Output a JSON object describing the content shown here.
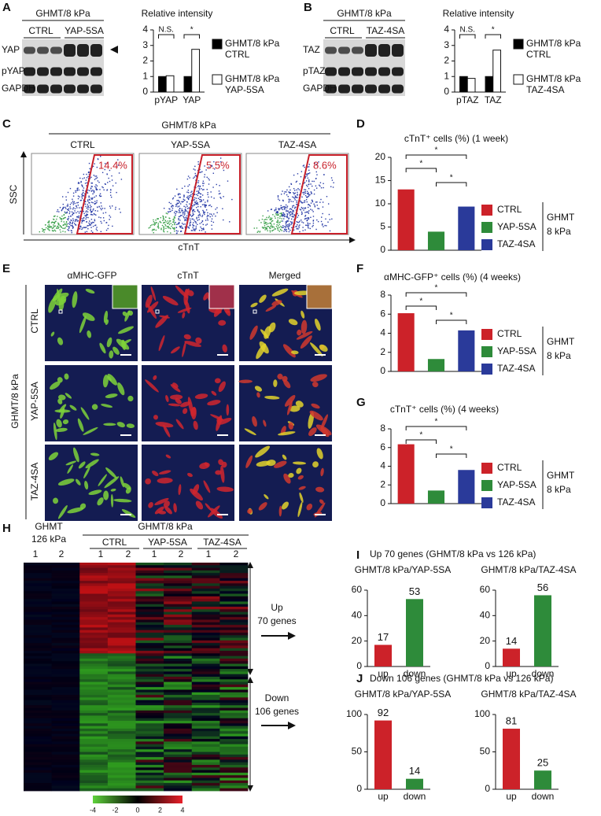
{
  "panels": {
    "A": {
      "label": "A",
      "group": "GHMT/8 kPa",
      "lanes": [
        "CTRL",
        "YAP-5SA"
      ],
      "rows": [
        "YAP",
        "pYAP",
        "GAPDH"
      ]
    },
    "B": {
      "label": "B",
      "group": "GHMT/8 kPa",
      "lanes": [
        "CTRL",
        "TAZ-4SA"
      ],
      "rows": [
        "TAZ",
        "pTAZ",
        "GAPDH"
      ]
    },
    "C": {
      "label": "C",
      "group": "GHMT/8 kPa",
      "plots": [
        {
          "title": "CTRL",
          "gate": "14.4%"
        },
        {
          "title": "YAP-5SA",
          "gate": "5.5%"
        },
        {
          "title": "TAZ-4SA",
          "gate": "8.6%"
        }
      ],
      "y_label": "SSC",
      "x_label": "cTnT"
    },
    "D": {
      "label": "D"
    },
    "E": {
      "label": "E",
      "columns": [
        "αMHC-GFP",
        "cTnT",
        "Merged"
      ],
      "rows": [
        "CTRL",
        "YAP-5SA",
        "TAZ-4SA"
      ],
      "group": "GHMT/8 kPa"
    },
    "F": {
      "label": "F"
    },
    "G": {
      "label": "G"
    },
    "H": {
      "label": "H",
      "reference": [
        "GHMT",
        "126 kPa"
      ],
      "group": "GHMT/8 kPa",
      "conditions": [
        "CTRL",
        "YAP-5SA",
        "TAZ-4SA"
      ],
      "replicates": [
        "1",
        "2"
      ],
      "colorbar": [
        -4,
        -2,
        0,
        2,
        4
      ],
      "up": [
        "Up",
        "70 genes"
      ],
      "down": [
        "Down",
        "106 genes"
      ]
    },
    "I": {
      "label": "I",
      "heading": "Up 70 genes (GHMT/8 kPa vs 126 kPa)"
    },
    "J": {
      "label": "J",
      "heading": "Down 106 genes (GHMT/8 kPa vs 126 kPa)"
    }
  },
  "chart_data": [
    {
      "type": "bar",
      "title": "Relative intensity",
      "categories": [
        "pYAP",
        "YAP"
      ],
      "series": [
        {
          "name": "GHMT/8 kPa CTRL",
          "color": "#000000",
          "values": [
            1,
            1
          ]
        },
        {
          "name": "GHMT/8 kPa YAP-5SA",
          "color": "#ffffff",
          "values": [
            1.05,
            2.75
          ]
        }
      ],
      "ylim": [
        0,
        4
      ],
      "yticks": [
        0,
        1,
        2,
        3,
        4
      ],
      "annotations": [
        "N.S.",
        "*"
      ],
      "legend": "right"
    },
    {
      "type": "bar",
      "title": "Relative intensity",
      "categories": [
        "pTAZ",
        "TAZ"
      ],
      "series": [
        {
          "name": "GHMT/8 kPa CTRL",
          "color": "#000000",
          "values": [
            1,
            1
          ]
        },
        {
          "name": "GHMT/8 kPa TAZ-4SA",
          "color": "#ffffff",
          "values": [
            0.88,
            2.7
          ]
        }
      ],
      "ylim": [
        0,
        4
      ],
      "yticks": [
        0,
        1,
        2,
        3,
        4
      ],
      "annotations": [
        "N.S.",
        "*"
      ],
      "legend": "right"
    },
    {
      "type": "bar",
      "title": "cTnT⁺ cells (%) (1 week)",
      "categories": [
        "CTRL",
        "YAP-5SA",
        "TAZ-4SA"
      ],
      "values": [
        13.1,
        4,
        9.4
      ],
      "colors": [
        "#cc2229",
        "#2e8b3a",
        "#2a3a9a"
      ],
      "ylim": [
        0,
        20
      ],
      "yticks": [
        0,
        5,
        10,
        15,
        20
      ],
      "annotations": [
        "*",
        "*",
        "*"
      ],
      "legend": "right",
      "legend_title": [
        "GHMT",
        "8 kPa"
      ]
    },
    {
      "type": "bar",
      "title": "αMHC-GFP⁺ cells (%) (4 weeks)",
      "categories": [
        "CTRL",
        "YAP-5SA",
        "TAZ-4SA"
      ],
      "values": [
        6.1,
        1.3,
        4.3
      ],
      "colors": [
        "#cc2229",
        "#2e8b3a",
        "#2a3a9a"
      ],
      "ylim": [
        0,
        8
      ],
      "yticks": [
        0,
        2,
        4,
        6,
        8
      ],
      "annotations": [
        "*",
        "*",
        "*"
      ],
      "legend": "right",
      "legend_title": [
        "GHMT",
        "8 kPa"
      ]
    },
    {
      "type": "bar",
      "title": "cTnT⁺ cells (%) (4 weeks)",
      "categories": [
        "CTRL",
        "YAP-5SA",
        "TAZ-4SA"
      ],
      "values": [
        6.35,
        1.4,
        3.6
      ],
      "colors": [
        "#cc2229",
        "#2e8b3a",
        "#2a3a9a"
      ],
      "ylim": [
        0,
        8
      ],
      "yticks": [
        0,
        2,
        4,
        6,
        8
      ],
      "annotations": [
        "*",
        "*",
        "*"
      ],
      "legend": "right",
      "legend_title": [
        "GHMT",
        "8 kPa"
      ]
    },
    {
      "type": "bar",
      "title": "GHMT/8 kPa/YAP-5SA",
      "categories": [
        "up",
        "down"
      ],
      "values": [
        17,
        53
      ],
      "colors": [
        "#cc2229",
        "#2e8b3a"
      ],
      "ylim": [
        0,
        60
      ],
      "yticks": [
        0,
        20,
        40,
        60
      ],
      "data_labels": true
    },
    {
      "type": "bar",
      "title": "GHMT/8 kPa/TAZ-4SA",
      "categories": [
        "up",
        "down"
      ],
      "values": [
        14,
        56
      ],
      "colors": [
        "#cc2229",
        "#2e8b3a"
      ],
      "ylim": [
        0,
        60
      ],
      "yticks": [
        0,
        20,
        40,
        60
      ],
      "data_labels": true
    },
    {
      "type": "bar",
      "title": "GHMT/8 kPa/YAP-5SA",
      "categories": [
        "up",
        "down"
      ],
      "values": [
        92,
        14
      ],
      "colors": [
        "#cc2229",
        "#2e8b3a"
      ],
      "ylim": [
        0,
        100
      ],
      "yticks": [
        0,
        50,
        100
      ],
      "data_labels": true
    },
    {
      "type": "bar",
      "title": "GHMT/8 kPa/TAZ-4SA",
      "categories": [
        "up",
        "down"
      ],
      "values": [
        81,
        25
      ],
      "colors": [
        "#cc2229",
        "#2e8b3a"
      ],
      "ylim": [
        0,
        100
      ],
      "yticks": [
        0,
        50,
        100
      ],
      "data_labels": true
    }
  ]
}
